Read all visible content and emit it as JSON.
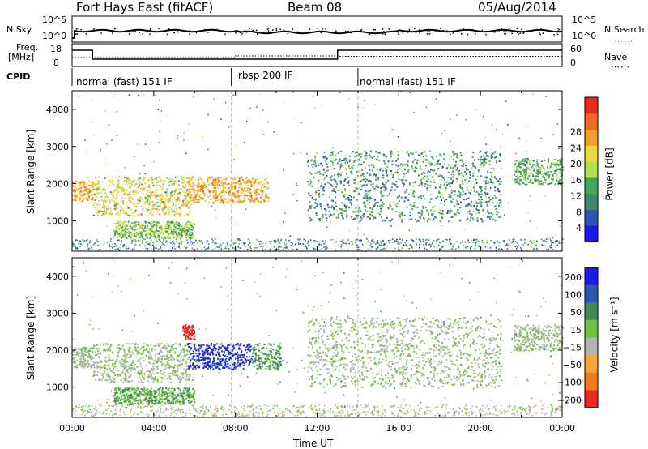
{
  "header": {
    "station": "Fort Hays East (fitACF)",
    "beam": "Beam 08",
    "date": "05/Aug/2014"
  },
  "top_panels": {
    "nsky_label": "N.Sky",
    "nsearch_label": "N.Search",
    "nsky_ticks": [
      "10^5",
      "10^0"
    ],
    "nsearch_ticks": [
      "10^5",
      "10^0"
    ],
    "freq_label": "Freq.",
    "freq_unit": "[MHz]",
    "freq_ticks": [
      "18",
      "8"
    ],
    "nave_label": "Nave",
    "nave_ticks": [
      "60",
      "0"
    ],
    "cpid_label": "CPID"
  },
  "cpid_modes": [
    {
      "label": "normal (fast) 151 IF",
      "start_hour": 0
    },
    {
      "label": "rbsp 200 IF",
      "start_hour": 7.8
    },
    {
      "label": "normal (fast) 151 IF",
      "start_hour": 14
    }
  ],
  "x_axis": {
    "label": "Time UT",
    "ticks": [
      "00:00",
      "04:00",
      "08:00",
      "12:00",
      "16:00",
      "20:00",
      "00:00"
    ]
  },
  "chart_data": [
    {
      "type": "heatmap",
      "name": "power-panel",
      "xlabel": "Time UT",
      "ylabel": "Slant Range [km]",
      "xlim": [
        0,
        24
      ],
      "ylim": [
        180,
        4500
      ],
      "y_ticks": [
        "1000",
        "2000",
        "3000",
        "4000"
      ],
      "colorbar": {
        "label": "Power [dB]",
        "ticks": [
          "4",
          "8",
          "12",
          "16",
          "20",
          "24",
          "28"
        ],
        "colors": [
          "#1a1aee",
          "#2a55b5",
          "#3f8a6d",
          "#43a85a",
          "#b4e04e",
          "#f1d53c",
          "#f4a02f",
          "#ef6a25",
          "#e92a1a"
        ]
      },
      "features": [
        {
          "t0": 0.0,
          "t1": 1.0,
          "r0": 1550,
          "r1": 2100,
          "level": 22
        },
        {
          "t0": 1.0,
          "t1": 5.8,
          "r0": 1150,
          "r1": 2200,
          "level": 18
        },
        {
          "t0": 2.0,
          "t1": 6.0,
          "r0": 550,
          "r1": 1000,
          "level": 14
        },
        {
          "t0": 5.6,
          "t1": 9.6,
          "r0": 1500,
          "r1": 2200,
          "level": 22
        },
        {
          "t0": 11.5,
          "t1": 21.0,
          "r0": 1000,
          "r1": 2900,
          "level": 10
        },
        {
          "t0": 21.6,
          "t1": 24.0,
          "r0": 2000,
          "r1": 2700,
          "level": 12
        }
      ]
    },
    {
      "type": "heatmap",
      "name": "velocity-panel",
      "xlabel": "Time UT",
      "ylabel": "Slant Range [km]",
      "xlim": [
        0,
        24
      ],
      "ylim": [
        180,
        4500
      ],
      "y_ticks": [
        "1000",
        "2000",
        "3000",
        "4000"
      ],
      "colorbar": {
        "label": "Velocity [m s⁻¹]",
        "ticks": [
          "200",
          "100",
          "50",
          "15",
          "−15",
          "−50",
          "−100",
          "−200"
        ],
        "colors": [
          "#1c1ce0",
          "#2a56b5",
          "#3f8a55",
          "#6ec33f",
          "#b3b3b3",
          "#f3a835",
          "#ef7a22",
          "#ea2a1b"
        ]
      },
      "features": [
        {
          "t0": 0.0,
          "t1": 1.0,
          "r0": 1550,
          "r1": 2100,
          "level": 0
        },
        {
          "t0": 1.0,
          "t1": 5.8,
          "r0": 1150,
          "r1": 2200,
          "level": 0
        },
        {
          "t0": 2.0,
          "t1": 6.0,
          "r0": 550,
          "r1": 1000,
          "level": 30
        },
        {
          "t0": 5.6,
          "t1": 8.8,
          "r0": 1500,
          "r1": 2200,
          "level": 150
        },
        {
          "t0": 8.8,
          "t1": 10.2,
          "r0": 1500,
          "r1": 2200,
          "level": 40
        },
        {
          "t0": 5.4,
          "t1": 6.0,
          "r0": 2300,
          "r1": 2700,
          "level": -180
        },
        {
          "t0": 11.5,
          "t1": 21.0,
          "r0": 1000,
          "r1": 2900,
          "level": 0
        },
        {
          "t0": 21.6,
          "t1": 24.0,
          "r0": 2000,
          "r1": 2700,
          "level": 0
        }
      ]
    }
  ]
}
